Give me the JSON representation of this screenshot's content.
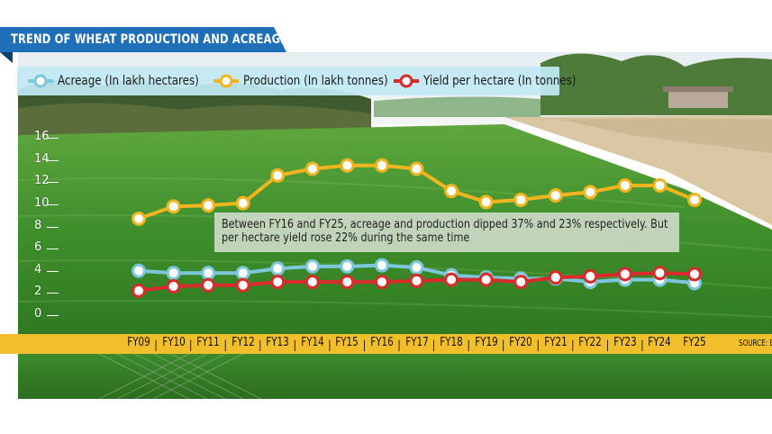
{
  "header": {
    "title": "TREND OF WHEAT PRODUCTION AND ACREAGE"
  },
  "source_label": "SOURCE: B",
  "colors": {
    "acreage": "#7cc7dc",
    "production": "#f2b520",
    "yield": "#d92b2b",
    "band": "#f2bf2c",
    "title_bg": "#1f6fb8"
  },
  "chart_data": {
    "type": "line",
    "title": "TREND OF WHEAT PRODUCTION AND ACREAGE",
    "x": [
      "FY09",
      "FY10",
      "FY11",
      "FY12",
      "FY13",
      "FY14",
      "FY15",
      "FY16",
      "FY17",
      "FY18",
      "FY19",
      "FY20",
      "FY21",
      "FY22",
      "FY23",
      "FY24",
      "FY25"
    ],
    "yticks": [
      "0",
      "2",
      "4",
      "6",
      "8",
      "10",
      "12",
      "14",
      "16"
    ],
    "ylim": [
      0,
      16
    ],
    "grid": false,
    "legend_position": "top-left",
    "series": [
      {
        "name": "Acreage (In lakh hectares)",
        "key": "acreage",
        "values": [
          4.0,
          3.8,
          3.8,
          3.8,
          4.2,
          4.4,
          4.4,
          4.5,
          4.3,
          3.6,
          3.4,
          3.3,
          3.3,
          3.0,
          3.2,
          3.2,
          2.9
        ]
      },
      {
        "name": "Production (In lakh tonnes)",
        "key": "production",
        "values": [
          8.7,
          9.8,
          9.9,
          10.1,
          12.6,
          13.2,
          13.5,
          13.5,
          13.2,
          11.2,
          10.2,
          10.4,
          10.8,
          11.1,
          11.7,
          11.7,
          10.4
        ]
      },
      {
        "name": "Yield per hectare (In tonnes)",
        "key": "yield",
        "values": [
          2.2,
          2.6,
          2.7,
          2.7,
          3.0,
          3.0,
          3.0,
          3.0,
          3.1,
          3.2,
          3.2,
          3.0,
          3.4,
          3.5,
          3.7,
          3.8,
          3.7
        ]
      }
    ],
    "annotation": "Between FY16 and FY25, acreage and production dipped 37% and 23% respectively. But per hectare yield rose 22% during the same time"
  }
}
